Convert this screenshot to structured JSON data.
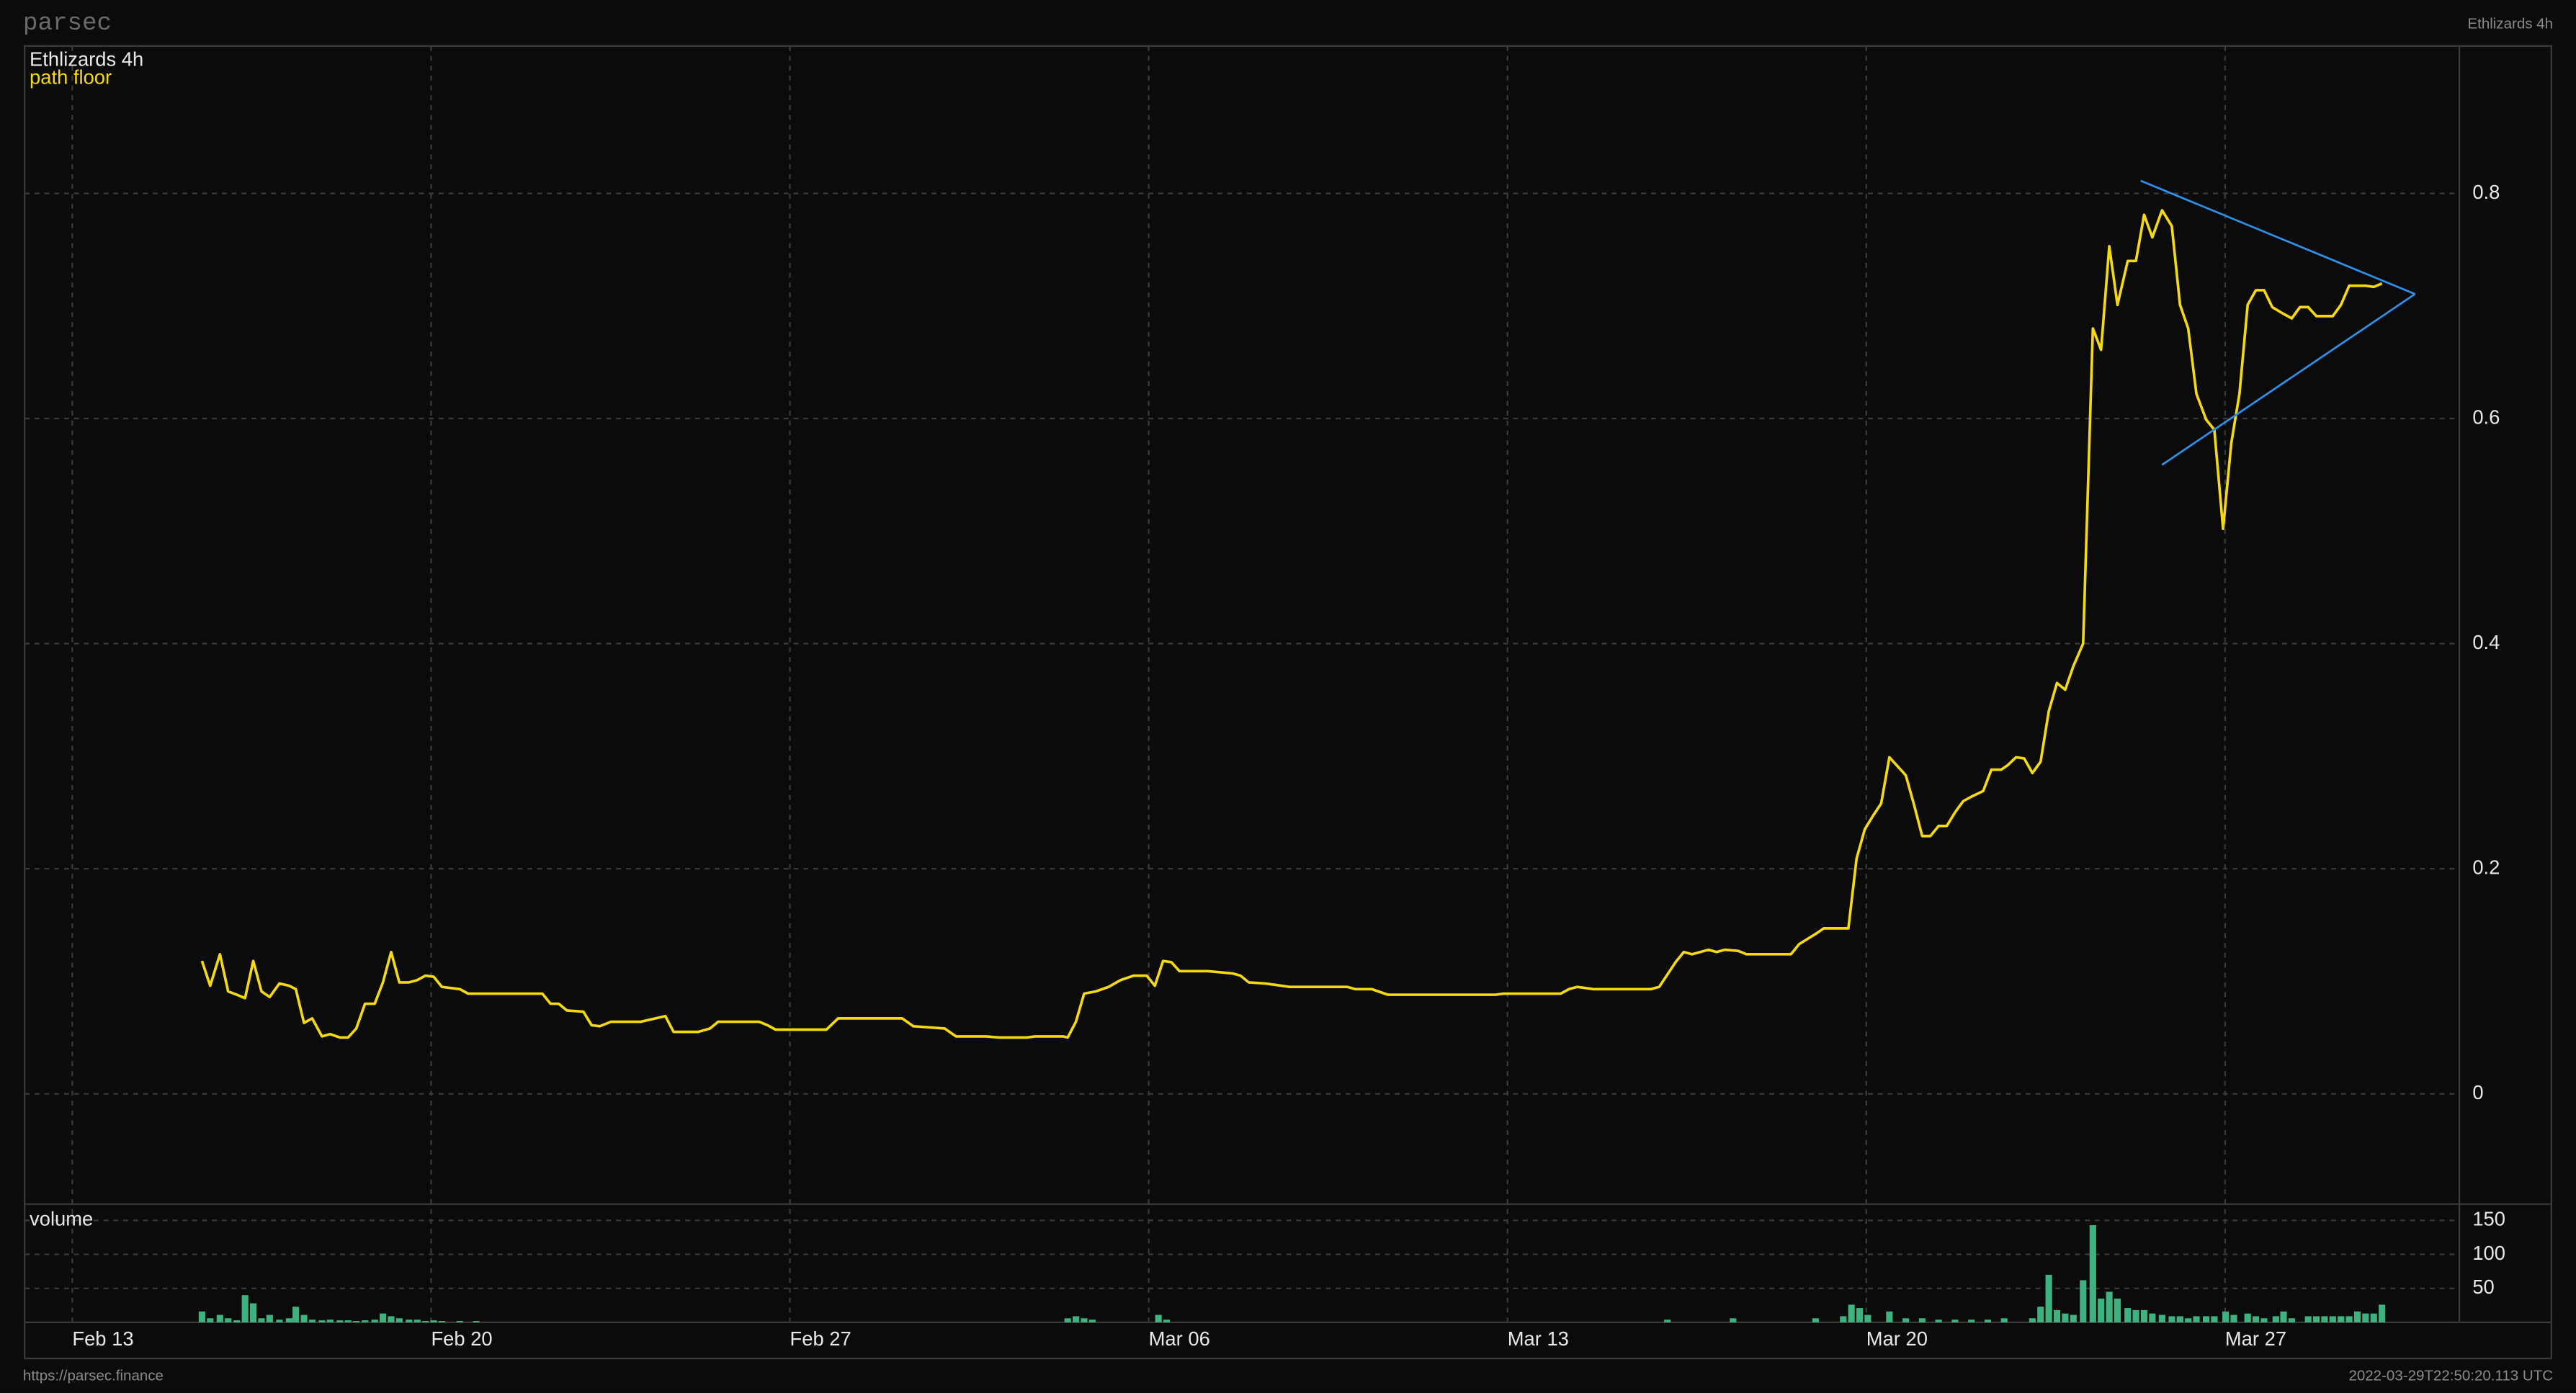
{
  "header": {
    "brand": "parsec",
    "page_title": "Ethlizards 4h"
  },
  "footer": {
    "url": "https://parsec.finance",
    "timestamp": "2022-03-29T22:50:20.113 UTC"
  },
  "chart_data": [
    {
      "type": "line",
      "title": "Ethlizards 4h",
      "x": [
        2.53,
        2.69,
        2.88,
        3.04,
        3.21,
        3.37,
        3.53,
        3.69,
        3.85,
        4.04,
        4.23,
        4.36,
        4.52,
        4.68,
        4.87,
        5.03,
        5.22,
        5.38,
        5.54,
        5.71,
        5.9,
        6.06,
        6.22,
        6.38,
        6.57,
        6.73,
        6.89,
        7.05,
        7.21,
        7.56,
        7.72,
        9.17,
        9.33,
        9.49,
        9.65,
        9.97,
        10.13,
        10.29,
        10.51,
        11.09,
        11.57,
        11.73,
        12.21,
        12.44,
        12.6,
        13.4,
        13.56,
        13.72,
        14.71,
        14.94,
        16.19,
        16.41,
        17.02,
        17.24,
        17.82,
        18.08,
        18.62,
        18.78,
        19.33,
        19.42,
        19.58,
        19.74,
        19.97,
        20.22,
        20.45,
        20.71,
        20.96,
        21.12,
        21.28,
        21.44,
        21.6,
        22.15,
        22.63,
        22.79,
        22.95,
        23.27,
        23.75,
        24.87,
        25.03,
        25.35,
        25.67,
        25.83,
        27.76,
        27.92,
        29.04,
        29.2,
        29.36,
        29.68,
        30.8,
        30.96,
        31.28,
        31.44,
        31.6,
        31.92,
        32.08,
        32.24,
        32.5,
        32.66,
        33.53,
        33.69,
        34.01,
        34.17,
        34.65,
        34.81,
        34.97,
        35.13,
        35.29,
        35.45,
        35.61,
        35.77,
        35.93,
        36.09,
        36.25,
        36.41,
        36.57,
        36.73,
        36.89,
        37.05,
        37.28,
        37.44,
        37.63,
        37.76,
        37.92,
        38.08,
        38.24,
        38.4,
        38.56,
        38.72,
        38.88,
        39.04,
        39.23,
        39.42,
        39.58,
        39.74,
        39.9,
        40.1,
        40.26,
        40.42,
        40.58,
        40.77,
        40.96,
        41.12,
        41.28,
        41.44,
        41.63,
        41.79,
        41.96,
        42.12,
        42.28,
        42.44,
        42.6,
        42.76,
        42.92,
        43.14,
        43.3,
        43.46,
        43.62,
        43.78,
        44.1,
        44.26,
        44.42,
        44.74,
        44.9,
        45.06
      ],
      "series": [
        {
          "name": "path floor",
          "color": "#f5d90a",
          "values": [
            0.118,
            0.096,
            0.124,
            0.091,
            0.088,
            0.085,
            0.118,
            0.091,
            0.086,
            0.098,
            0.096,
            0.093,
            0.063,
            0.067,
            0.051,
            0.053,
            0.05,
            0.05,
            0.058,
            0.08,
            0.08,
            0.099,
            0.126,
            0.099,
            0.099,
            0.101,
            0.105,
            0.104,
            0.095,
            0.093,
            0.089,
            0.089,
            0.08,
            0.08,
            0.074,
            0.073,
            0.061,
            0.06,
            0.064,
            0.064,
            0.069,
            0.055,
            0.055,
            0.058,
            0.064,
            0.064,
            0.061,
            0.057,
            0.057,
            0.067,
            0.067,
            0.06,
            0.058,
            0.051,
            0.051,
            0.05,
            0.05,
            0.051,
            0.051,
            0.05,
            0.064,
            0.089,
            0.091,
            0.095,
            0.101,
            0.105,
            0.105,
            0.096,
            0.118,
            0.117,
            0.109,
            0.109,
            0.107,
            0.105,
            0.099,
            0.098,
            0.095,
            0.095,
            0.093,
            0.093,
            0.088,
            0.088,
            0.088,
            0.089,
            0.089,
            0.093,
            0.095,
            0.093,
            0.093,
            0.095,
            0.117,
            0.126,
            0.124,
            0.128,
            0.126,
            0.128,
            0.127,
            0.124,
            0.124,
            0.133,
            0.142,
            0.147,
            0.147,
            0.209,
            0.235,
            0.247,
            0.258,
            0.299,
            0.291,
            0.283,
            0.257,
            0.229,
            0.229,
            0.238,
            0.238,
            0.25,
            0.26,
            0.264,
            0.269,
            0.288,
            0.288,
            0.292,
            0.299,
            0.298,
            0.285,
            0.295,
            0.34,
            0.365,
            0.359,
            0.38,
            0.4,
            0.68,
            0.661,
            0.753,
            0.701,
            0.74,
            0.74,
            0.781,
            0.761,
            0.785,
            0.771,
            0.701,
            0.68,
            0.622,
            0.599,
            0.59,
            0.502,
            0.578,
            0.622,
            0.701,
            0.714,
            0.714,
            0.699,
            0.693,
            0.689,
            0.699,
            0.699,
            0.691,
            0.691,
            0.701,
            0.718,
            0.718,
            0.717,
            0.72
          ]
        }
      ],
      "xlim": [
        -0.93,
        46.57
      ],
      "ylim": [
        -0.098,
        0.931
      ],
      "yticks": [
        0,
        0.2,
        0.4,
        0.6,
        0.8
      ],
      "grid": true
    },
    {
      "type": "bar",
      "title": "volume",
      "color": "#3fb37f",
      "x": [
        2.53,
        2.69,
        2.88,
        3.04,
        3.21,
        3.37,
        3.53,
        3.69,
        3.85,
        4.04,
        4.23,
        4.36,
        4.52,
        4.68,
        4.87,
        5.03,
        5.22,
        5.38,
        5.54,
        5.71,
        5.9,
        6.06,
        6.22,
        6.38,
        6.57,
        6.73,
        6.89,
        7.05,
        7.21,
        7.56,
        7.88,
        19.42,
        19.58,
        19.74,
        19.9,
        21.19,
        21.35,
        31.12,
        32.4,
        34.01,
        34.55,
        34.71,
        34.87,
        35.03,
        35.45,
        35.77,
        36.09,
        36.41,
        36.73,
        37.05,
        37.37,
        37.69,
        38.24,
        38.4,
        38.56,
        38.72,
        38.88,
        39.04,
        39.23,
        39.42,
        39.58,
        39.74,
        39.9,
        40.1,
        40.26,
        40.42,
        40.58,
        40.77,
        40.96,
        41.12,
        41.28,
        41.44,
        41.63,
        41.79,
        42.01,
        42.17,
        42.44,
        42.6,
        42.76,
        42.99,
        43.14,
        43.3,
        43.62,
        43.78,
        43.94,
        44.1,
        44.26,
        44.42,
        44.58,
        44.74,
        44.9,
        45.06
      ],
      "values": [
        16,
        6,
        11,
        6,
        3,
        40,
        28,
        6,
        11,
        4,
        6,
        23,
        11,
        4,
        3,
        4,
        3,
        3,
        2,
        3,
        4,
        13,
        9,
        6,
        4,
        4,
        2,
        3,
        2,
        2,
        2,
        6,
        9,
        6,
        4,
        11,
        4,
        4,
        6,
        6,
        9,
        26,
        21,
        11,
        16,
        6,
        6,
        4,
        4,
        4,
        4,
        6,
        6,
        23,
        70,
        18,
        13,
        11,
        62,
        143,
        35,
        45,
        35,
        21,
        18,
        18,
        13,
        11,
        9,
        9,
        6,
        9,
        9,
        9,
        16,
        11,
        13,
        9,
        6,
        9,
        16,
        6,
        9,
        9,
        9,
        9,
        9,
        9,
        16,
        13,
        13,
        26
      ],
      "xlim": [
        -0.93,
        46.57
      ],
      "xticks": [
        {
          "value": 0,
          "label": "Feb 13"
        },
        {
          "value": 7,
          "label": "Feb 20"
        },
        {
          "value": 14,
          "label": "Feb 27"
        },
        {
          "value": 21,
          "label": "Mar 06"
        },
        {
          "value": 28,
          "label": "Mar 13"
        },
        {
          "value": 35,
          "label": "Mar 20"
        },
        {
          "value": 42,
          "label": "Mar 27"
        }
      ],
      "ylim": [
        0,
        174
      ],
      "yticks": [
        50,
        100,
        150
      ],
      "grid": true
    }
  ]
}
